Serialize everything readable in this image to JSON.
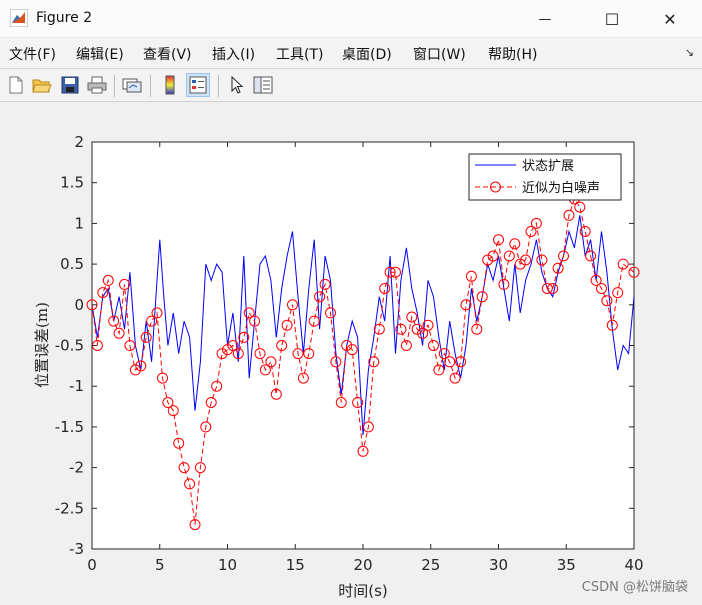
{
  "window": {
    "title": "Figure 2",
    "min_glyph": "—",
    "max_glyph": "☐",
    "close_glyph": "✕"
  },
  "menu": {
    "items": [
      "文件(F)",
      "编辑(E)",
      "查看(V)",
      "插入(I)",
      "工具(T)",
      "桌面(D)",
      "窗口(W)",
      "帮助(H)"
    ],
    "pin_glyph": "↘"
  },
  "toolbar": {
    "buttons": [
      "new-figure-icon",
      "open-file-icon",
      "save-icon",
      "print-icon",
      "link-plot-icon",
      "insert-colorbar-icon",
      "insert-legend-icon",
      "edit-plot-icon",
      "property-inspector-icon"
    ]
  },
  "watermark": "CSDN @松饼脑袋",
  "colors": {
    "blue": "#0000ff",
    "red": "#ff0000"
  },
  "chart_data": {
    "type": "line",
    "xlabel": "时间(s)",
    "ylabel": "位置误差(m)",
    "xlim": [
      0,
      40
    ],
    "ylim": [
      -3,
      2
    ],
    "xticks": [
      0,
      5,
      10,
      15,
      20,
      25,
      30,
      35,
      40
    ],
    "yticks": [
      -3,
      -2.5,
      -2,
      -1.5,
      -1,
      -0.5,
      0,
      0.5,
      1,
      1.5,
      2
    ],
    "legend_position": "top-right",
    "series": [
      {
        "name": "状态扩展",
        "style": "solid line",
        "color": "#0000ff",
        "points": [
          [
            0,
            0
          ],
          [
            0.4,
            -0.4
          ],
          [
            0.8,
            0.1
          ],
          [
            1.2,
            0.2
          ],
          [
            1.6,
            -0.2
          ],
          [
            2.0,
            0.1
          ],
          [
            2.4,
            -0.3
          ],
          [
            2.8,
            0.4
          ],
          [
            3.2,
            -0.5
          ],
          [
            3.6,
            -0.8
          ],
          [
            4.0,
            -0.2
          ],
          [
            4.4,
            -0.7
          ],
          [
            4.8,
            0.3
          ],
          [
            5.0,
            0.8
          ],
          [
            5.3,
            0.1
          ],
          [
            5.6,
            -0.5
          ],
          [
            6.0,
            -0.1
          ],
          [
            6.4,
            -0.6
          ],
          [
            6.8,
            -0.2
          ],
          [
            7.2,
            -0.4
          ],
          [
            7.6,
            -1.3
          ],
          [
            8.0,
            -0.7
          ],
          [
            8.4,
            0.5
          ],
          [
            8.8,
            0.3
          ],
          [
            9.2,
            0.5
          ],
          [
            9.6,
            0.4
          ],
          [
            10.0,
            -0.5
          ],
          [
            10.4,
            -0.1
          ],
          [
            10.8,
            -0.7
          ],
          [
            11.2,
            0.6
          ],
          [
            11.6,
            -0.9
          ],
          [
            12.0,
            -0.2
          ],
          [
            12.4,
            0.5
          ],
          [
            12.8,
            0.6
          ],
          [
            13.2,
            0.3
          ],
          [
            13.6,
            -0.4
          ],
          [
            14.0,
            0.2
          ],
          [
            14.4,
            0.6
          ],
          [
            14.8,
            0.9
          ],
          [
            15.2,
            0.1
          ],
          [
            15.6,
            -0.6
          ],
          [
            16.0,
            0.2
          ],
          [
            16.4,
            0.8
          ],
          [
            16.8,
            -0.3
          ],
          [
            17.2,
            0.6
          ],
          [
            17.6,
            0.3
          ],
          [
            18.0,
            -0.6
          ],
          [
            18.4,
            -1.1
          ],
          [
            18.8,
            -0.5
          ],
          [
            19.2,
            -0.2
          ],
          [
            19.6,
            -0.4
          ],
          [
            20.0,
            -1.6
          ],
          [
            20.4,
            -0.8
          ],
          [
            20.8,
            -0.4
          ],
          [
            21.2,
            0.1
          ],
          [
            21.6,
            -0.2
          ],
          [
            22.0,
            0.6
          ],
          [
            22.4,
            -0.6
          ],
          [
            22.8,
            0.3
          ],
          [
            23.2,
            0.7
          ],
          [
            23.6,
            0.2
          ],
          [
            24.0,
            -0.1
          ],
          [
            24.4,
            -0.5
          ],
          [
            24.8,
            0.3
          ],
          [
            25.2,
            0.1
          ],
          [
            25.6,
            -0.4
          ],
          [
            26.0,
            -0.8
          ],
          [
            26.4,
            -0.2
          ],
          [
            26.8,
            -0.6
          ],
          [
            27.2,
            -0.9
          ],
          [
            27.6,
            -0.5
          ],
          [
            28.0,
            0.2
          ],
          [
            28.4,
            -0.2
          ],
          [
            28.8,
            0.1
          ],
          [
            29.2,
            0.5
          ],
          [
            29.6,
            0.3
          ],
          [
            30.0,
            0.6
          ],
          [
            30.4,
            0.2
          ],
          [
            30.8,
            -0.2
          ],
          [
            31.2,
            0.5
          ],
          [
            31.6,
            -0.1
          ],
          [
            32.0,
            0.3
          ],
          [
            32.4,
            0.5
          ],
          [
            32.8,
            0.8
          ],
          [
            33.2,
            0.4
          ],
          [
            33.6,
            0.2
          ],
          [
            34.0,
            0.1
          ],
          [
            34.4,
            0.4
          ],
          [
            34.8,
            0.6
          ],
          [
            35.2,
            0.9
          ],
          [
            35.6,
            0.7
          ],
          [
            36.0,
            1.1
          ],
          [
            36.4,
            0.6
          ],
          [
            36.8,
            0.8
          ],
          [
            37.2,
            0.3
          ],
          [
            37.6,
            0.9
          ],
          [
            38.0,
            0.4
          ],
          [
            38.4,
            -0.3
          ],
          [
            38.8,
            -0.8
          ],
          [
            39.2,
            -0.5
          ],
          [
            39.6,
            -0.6
          ],
          [
            40,
            0.1
          ]
        ]
      },
      {
        "name": "近似为白噪声",
        "style": "dashed line with circle markers",
        "color": "#ff0000",
        "points": [
          [
            0,
            0
          ],
          [
            0.4,
            -0.5
          ],
          [
            0.8,
            0.15
          ],
          [
            1.2,
            0.3
          ],
          [
            1.6,
            -0.2
          ],
          [
            2.0,
            -0.35
          ],
          [
            2.4,
            0.25
          ],
          [
            2.8,
            -0.5
          ],
          [
            3.2,
            -0.8
          ],
          [
            3.6,
            -0.75
          ],
          [
            4.0,
            -0.4
          ],
          [
            4.4,
            -0.2
          ],
          [
            4.8,
            -0.1
          ],
          [
            5.2,
            -0.9
          ],
          [
            5.6,
            -1.2
          ],
          [
            6.0,
            -1.3
          ],
          [
            6.4,
            -1.7
          ],
          [
            6.8,
            -2.0
          ],
          [
            7.2,
            -2.2
          ],
          [
            7.6,
            -2.7
          ],
          [
            8.0,
            -2.0
          ],
          [
            8.4,
            -1.5
          ],
          [
            8.8,
            -1.2
          ],
          [
            9.2,
            -1.0
          ],
          [
            9.6,
            -0.6
          ],
          [
            10.0,
            -0.55
          ],
          [
            10.4,
            -0.5
          ],
          [
            10.8,
            -0.6
          ],
          [
            11.2,
            -0.4
          ],
          [
            11.6,
            -0.1
          ],
          [
            12.0,
            -0.2
          ],
          [
            12.4,
            -0.6
          ],
          [
            12.8,
            -0.8
          ],
          [
            13.2,
            -0.7
          ],
          [
            13.6,
            -1.1
          ],
          [
            14.0,
            -0.5
          ],
          [
            14.4,
            -0.25
          ],
          [
            14.8,
            0
          ],
          [
            15.2,
            -0.6
          ],
          [
            15.6,
            -0.9
          ],
          [
            16.0,
            -0.6
          ],
          [
            16.4,
            -0.2
          ],
          [
            16.8,
            0.1
          ],
          [
            17.2,
            0.25
          ],
          [
            17.6,
            -0.1
          ],
          [
            18.0,
            -0.7
          ],
          [
            18.4,
            -1.2
          ],
          [
            18.8,
            -0.5
          ],
          [
            19.2,
            -0.55
          ],
          [
            19.6,
            -1.2
          ],
          [
            20.0,
            -1.8
          ],
          [
            20.4,
            -1.5
          ],
          [
            20.8,
            -0.7
          ],
          [
            21.2,
            -0.3
          ],
          [
            21.6,
            0.2
          ],
          [
            22.0,
            0.4
          ],
          [
            22.4,
            0.4
          ],
          [
            22.8,
            -0.3
          ],
          [
            23.2,
            -0.5
          ],
          [
            23.6,
            -0.15
          ],
          [
            24.0,
            -0.3
          ],
          [
            24.4,
            -0.35
          ],
          [
            24.8,
            -0.25
          ],
          [
            25.2,
            -0.5
          ],
          [
            25.6,
            -0.8
          ],
          [
            26.0,
            -0.6
          ],
          [
            26.4,
            -0.7
          ],
          [
            26.8,
            -0.9
          ],
          [
            27.2,
            -0.7
          ],
          [
            27.6,
            0.0
          ],
          [
            28.0,
            0.35
          ],
          [
            28.4,
            -0.3
          ],
          [
            28.8,
            0.1
          ],
          [
            29.2,
            0.55
          ],
          [
            29.6,
            0.6
          ],
          [
            30.0,
            0.8
          ],
          [
            30.4,
            0.25
          ],
          [
            30.8,
            0.6
          ],
          [
            31.2,
            0.75
          ],
          [
            31.6,
            0.5
          ],
          [
            32.0,
            0.55
          ],
          [
            32.4,
            0.9
          ],
          [
            32.8,
            1.0
          ],
          [
            33.2,
            0.55
          ],
          [
            33.6,
            0.2
          ],
          [
            34.0,
            0.2
          ],
          [
            34.4,
            0.45
          ],
          [
            34.8,
            0.6
          ],
          [
            35.2,
            1.1
          ],
          [
            35.6,
            1.3
          ],
          [
            36.0,
            1.2
          ],
          [
            36.4,
            0.9
          ],
          [
            36.8,
            0.6
          ],
          [
            37.2,
            0.3
          ],
          [
            37.6,
            0.2
          ],
          [
            38.0,
            0.05
          ],
          [
            38.4,
            -0.25
          ],
          [
            38.8,
            0.15
          ],
          [
            39.2,
            0.5
          ],
          [
            40,
            0.4
          ]
        ]
      }
    ]
  }
}
